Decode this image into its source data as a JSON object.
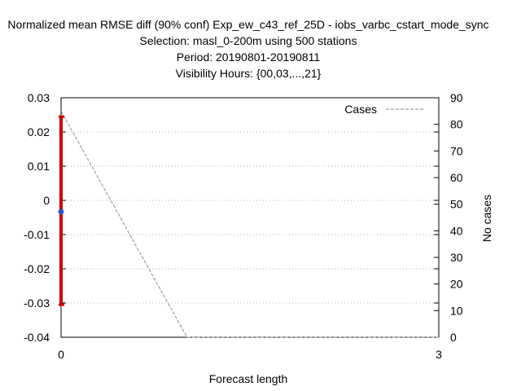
{
  "chart_data": {
    "type": "line",
    "title_lines": [
      "Normalized mean RMSE diff (90% conf) Exp_ew_c43_ref_25D - iobs_varbc_cstart_mode_sync",
      "Selection: masl_0-200m using   500 stations",
      "Period: 20190801-20190811",
      "Visibility   Hours: {00,03,...,21}"
    ],
    "xlabel": "Forecast length",
    "ylabel": "",
    "y2label": "No cases",
    "xlim": [
      0,
      3
    ],
    "ylim": [
      -0.04,
      0.03
    ],
    "y2lim": [
      0,
      90
    ],
    "xticks": [
      0,
      3
    ],
    "yticks": [
      0.03,
      0.02,
      0.01,
      0,
      -0.01,
      -0.02,
      -0.03,
      -0.04
    ],
    "ytick_labels": [
      "0.03",
      "0.02",
      "0.01",
      "0",
      "-0.01",
      "-0.02",
      "-0.03",
      "-0.04"
    ],
    "y2ticks": [
      90,
      80,
      70,
      60,
      50,
      40,
      30,
      20,
      10,
      0
    ],
    "grid": "horizontal dotted",
    "legend_position": "top-right",
    "legend": [
      {
        "label": "Cases",
        "style": "dashed",
        "color": "#888888"
      }
    ],
    "errorbar": {
      "x": 0,
      "mean": -0.0033,
      "low": -0.0305,
      "high": 0.0245,
      "color": "#cc0000",
      "marker_color": "#3355cc"
    },
    "cases_series": {
      "name": "Cases",
      "axis": "y2",
      "x": [
        0,
        1,
        3
      ],
      "values": [
        85,
        0,
        0
      ],
      "color": "#888888"
    }
  }
}
